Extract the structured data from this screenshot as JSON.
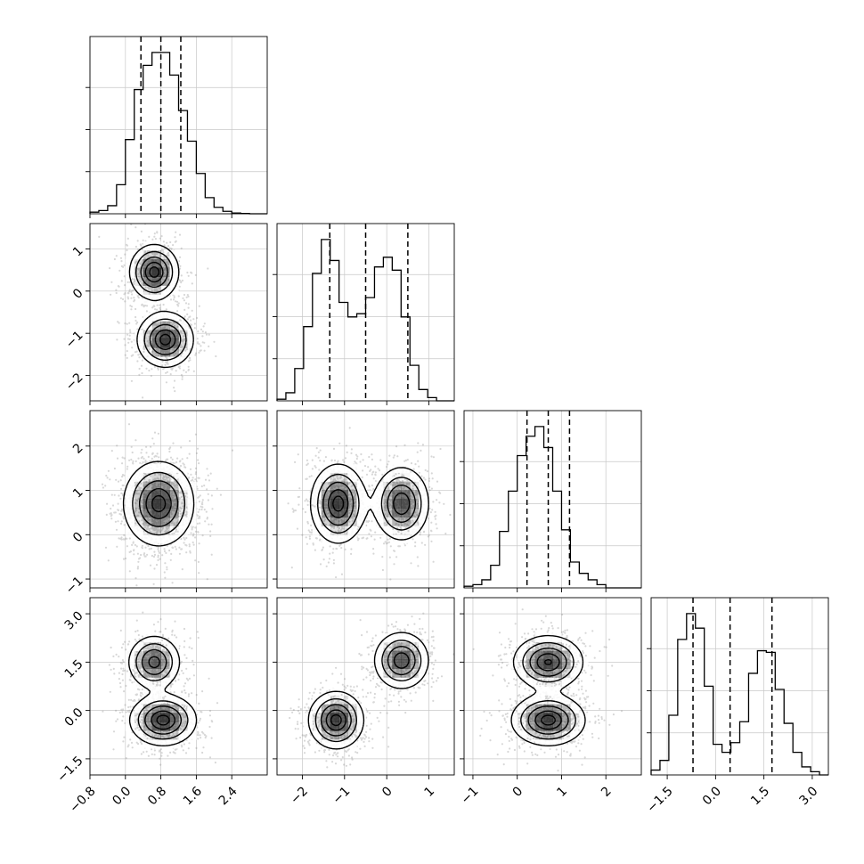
{
  "chart_data": {
    "type": "corner",
    "grid": true,
    "parameters": [
      {
        "index": 0,
        "range": [
          -0.8,
          3.2
        ],
        "ticks": [
          -0.8,
          0.0,
          0.8,
          1.6,
          2.4
        ],
        "tick_labels": [
          "−0.8",
          "0.0",
          "0.8",
          "1.6",
          "2.4"
        ],
        "quantiles": [
          0.35,
          0.8,
          1.25
        ],
        "hist": {
          "edges_start": -0.8,
          "bin_width": 0.2,
          "counts": [
            0.01,
            0.02,
            0.05,
            0.18,
            0.46,
            0.77,
            0.92,
            1.0,
            1.0,
            0.86,
            0.64,
            0.45,
            0.25,
            0.1,
            0.04,
            0.015,
            0.005,
            0.002,
            0.0,
            0.0
          ]
        }
      },
      {
        "index": 1,
        "range": [
          -2.6,
          1.6
        ],
        "ticks": [
          -2,
          -1,
          0,
          1
        ],
        "tick_labels": [
          "−2",
          "−1",
          "0",
          "1"
        ],
        "quantiles": [
          -1.35,
          -0.5,
          0.5
        ],
        "hist": {
          "edges_start": -2.6,
          "bin_width": 0.21,
          "counts": [
            0.01,
            0.05,
            0.2,
            0.46,
            0.79,
            1.0,
            0.87,
            0.61,
            0.52,
            0.54,
            0.64,
            0.83,
            0.89,
            0.81,
            0.52,
            0.22,
            0.07,
            0.02,
            0.0,
            0.0
          ]
        }
      },
      {
        "index": 2,
        "range": [
          -1.2,
          2.8
        ],
        "ticks": [
          -1,
          0,
          1,
          2
        ],
        "tick_labels": [
          "−1",
          "0",
          "1",
          "2"
        ],
        "quantiles": [
          0.22,
          0.7,
          1.18
        ],
        "hist": {
          "edges_start": -1.2,
          "bin_width": 0.2,
          "counts": [
            0.01,
            0.02,
            0.05,
            0.14,
            0.35,
            0.6,
            0.82,
            0.94,
            1.0,
            0.87,
            0.6,
            0.36,
            0.16,
            0.09,
            0.05,
            0.02,
            0.0,
            0.0,
            0.0,
            0.0
          ]
        }
      },
      {
        "index": 3,
        "range": [
          -2.0,
          3.5
        ],
        "ticks": [
          -1.5,
          0.0,
          1.5,
          3.0
        ],
        "tick_labels": [
          "−1.5",
          "0.0",
          "1.5",
          "3.0"
        ],
        "quantiles": [
          -0.7,
          0.45,
          1.75
        ],
        "hist": {
          "edges_start": -2.0,
          "bin_width": 0.275,
          "counts": [
            0.03,
            0.09,
            0.37,
            0.84,
            1.0,
            0.91,
            0.55,
            0.19,
            0.14,
            0.2,
            0.33,
            0.63,
            0.77,
            0.76,
            0.53,
            0.32,
            0.14,
            0.05,
            0.02,
            0.0
          ]
        }
      }
    ],
    "pairs": [
      {
        "row": 1,
        "col": 0,
        "modes": [
          {
            "x": 0.65,
            "y": 0.45,
            "sx": 0.28,
            "sy": 0.33,
            "w": 1.0
          },
          {
            "x": 0.9,
            "y": -1.15,
            "sx": 0.32,
            "sy": 0.33,
            "w": 1.0
          }
        ]
      },
      {
        "row": 2,
        "col": 0,
        "modes": [
          {
            "x": 0.75,
            "y": 0.7,
            "sx": 0.4,
            "sy": 0.48,
            "w": 1.0
          }
        ]
      },
      {
        "row": 2,
        "col": 1,
        "modes": [
          {
            "x": -1.15,
            "y": 0.7,
            "sx": 0.33,
            "sy": 0.45,
            "w": 1.0
          },
          {
            "x": 0.35,
            "y": 0.7,
            "sx": 0.33,
            "sy": 0.42,
            "w": 0.92
          }
        ]
      },
      {
        "row": 3,
        "col": 0,
        "modes": [
          {
            "x": 0.65,
            "y": 1.5,
            "sx": 0.3,
            "sy": 0.42,
            "w": 0.85
          },
          {
            "x": 0.85,
            "y": -0.3,
            "sx": 0.38,
            "sy": 0.4,
            "w": 1.0
          }
        ]
      },
      {
        "row": 3,
        "col": 1,
        "modes": [
          {
            "x": -1.2,
            "y": -0.3,
            "sx": 0.33,
            "sy": 0.45,
            "w": 1.0
          },
          {
            "x": 0.35,
            "y": 1.55,
            "sx": 0.33,
            "sy": 0.45,
            "w": 0.9
          }
        ]
      },
      {
        "row": 3,
        "col": 2,
        "modes": [
          {
            "x": 0.7,
            "y": 1.5,
            "sx": 0.4,
            "sy": 0.42,
            "w": 0.95
          },
          {
            "x": 0.7,
            "y": -0.3,
            "sx": 0.42,
            "sy": 0.4,
            "w": 1.0
          }
        ]
      }
    ]
  }
}
